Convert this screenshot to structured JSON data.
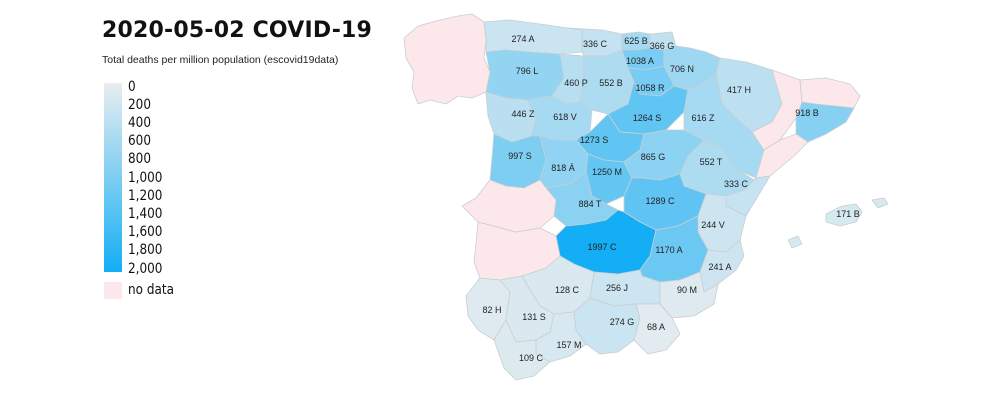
{
  "title": "2020-05-02 COVID-19",
  "subtitle": "Total deaths per million population (escovid19data)",
  "legend": {
    "ticks": [
      "0",
      "200",
      "400",
      "600",
      "800",
      "1,000",
      "1,200",
      "1,400",
      "1,600",
      "1,800",
      "2,000"
    ],
    "nodata_label": "no data",
    "color_low": "#e8edf0",
    "color_high": "#13aef5",
    "nodata_color": "#fce8ea"
  },
  "regions": [
    {
      "id": "asturias",
      "label": "274 A",
      "value": 274
    },
    {
      "id": "cantabria",
      "label": "336 C",
      "value": 336
    },
    {
      "id": "vizcaya",
      "label": "625 B",
      "value": 625
    },
    {
      "id": "guipuzcoa",
      "label": "366 G",
      "value": 366
    },
    {
      "id": "alava",
      "label": "1038 A",
      "value": 1038
    },
    {
      "id": "navarra",
      "label": "706 N",
      "value": 706
    },
    {
      "id": "leon",
      "label": "796 L",
      "value": 796
    },
    {
      "id": "palencia",
      "label": "460 P",
      "value": 460
    },
    {
      "id": "burgos",
      "label": "552 B",
      "value": 552
    },
    {
      "id": "larioja",
      "label": "1058 R",
      "value": 1058
    },
    {
      "id": "huesca",
      "label": "417 H",
      "value": 417
    },
    {
      "id": "barcelona",
      "label": "918 B",
      "value": 918
    },
    {
      "id": "zamora",
      "label": "446 Z",
      "value": 446
    },
    {
      "id": "valladolid",
      "label": "618 V",
      "value": 618
    },
    {
      "id": "soria",
      "label": "1264 S",
      "value": 1264
    },
    {
      "id": "zaragoza",
      "label": "616 Z",
      "value": 616
    },
    {
      "id": "segovia",
      "label": "1273 S",
      "value": 1273
    },
    {
      "id": "salamanca",
      "label": "997 S",
      "value": 997
    },
    {
      "id": "avila",
      "label": "818 Á",
      "value": 818
    },
    {
      "id": "madrid",
      "label": "1250 M",
      "value": 1250
    },
    {
      "id": "guadalajara",
      "label": "865 G",
      "value": 865
    },
    {
      "id": "teruel",
      "label": "552 T",
      "value": 552
    },
    {
      "id": "castellon",
      "label": "333 C",
      "value": 333
    },
    {
      "id": "toledo",
      "label": "884 T",
      "value": 884
    },
    {
      "id": "cuenca",
      "label": "1289 C",
      "value": 1289
    },
    {
      "id": "baleares",
      "label": "171 B",
      "value": 171
    },
    {
      "id": "valencia",
      "label": "244 V",
      "value": 244
    },
    {
      "id": "ciudadreal",
      "label": "1997 C",
      "value": 1997
    },
    {
      "id": "albacete",
      "label": "1170 A",
      "value": 1170
    },
    {
      "id": "alicante",
      "label": "241 A",
      "value": 241
    },
    {
      "id": "cordoba",
      "label": "128 C",
      "value": 128
    },
    {
      "id": "jaen",
      "label": "256 J",
      "value": 256
    },
    {
      "id": "murcia",
      "label": "90 M",
      "value": 90
    },
    {
      "id": "huelva",
      "label": "82 H",
      "value": 82
    },
    {
      "id": "sevilla",
      "label": "131 S",
      "value": 131
    },
    {
      "id": "granada",
      "label": "274 G",
      "value": 274
    },
    {
      "id": "almeria",
      "label": "68 A",
      "value": 68
    },
    {
      "id": "malaga",
      "label": "157 M",
      "value": 157
    },
    {
      "id": "cadiz",
      "label": "109 C",
      "value": 109
    },
    {
      "id": "galicia",
      "label": "",
      "value": null
    },
    {
      "id": "badajoz",
      "label": "",
      "value": null
    },
    {
      "id": "caceres",
      "label": "",
      "value": null
    },
    {
      "id": "lleida",
      "label": "",
      "value": null
    },
    {
      "id": "girona",
      "label": "",
      "value": null
    },
    {
      "id": "tarragona",
      "label": "",
      "value": null
    }
  ]
}
